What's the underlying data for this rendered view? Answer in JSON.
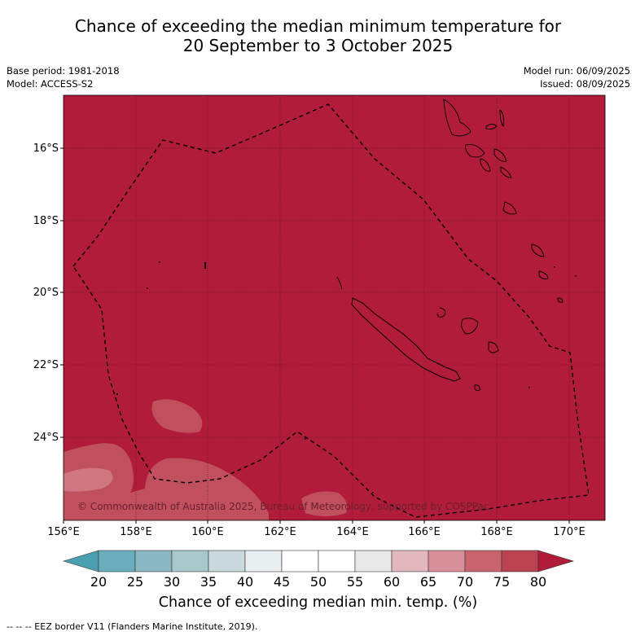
{
  "title_line1": "Chance of exceeding the median minimum temperature for",
  "title_line2": "20 September to 3 October 2025",
  "base_period": "Base period: 1981-2018",
  "model": "Model: ACCESS-S2",
  "model_run": "Model run: 06/09/2025",
  "issued": "Issued: 08/09/2025",
  "copyright": "© Commonwealth of Australia 2025, Bureau of Meteorology, supported by COSPPac",
  "lat_ticks": [
    "16°S",
    "18°S",
    "20°S",
    "22°S",
    "24°S"
  ],
  "lon_ticks": [
    "156°E",
    "158°E",
    "160°E",
    "162°E",
    "164°E",
    "166°E",
    "168°E",
    "170°E"
  ],
  "colorbar": {
    "ticks": [
      "20",
      "25",
      "30",
      "35",
      "40",
      "45",
      "50",
      "55",
      "60",
      "65",
      "70",
      "75",
      "80"
    ],
    "colors": [
      "#4a9fb0",
      "#6aaebd",
      "#8ab8c2",
      "#a9c8cc",
      "#c9d9dc",
      "#e9eff1",
      "#ffffff",
      "#ffffff",
      "#e8e8e8",
      "#e2b8be",
      "#d88e98",
      "#c9646f",
      "#bb4250",
      "#b01c3a"
    ],
    "label": "Chance of exceeding median min. temp. (%)"
  },
  "footnote": "--  --  -- EEZ border V11 (Flanders Marine Institute, 2019).",
  "map_colors": {
    "background": "#b01c3a",
    "lighter": "#c0505d",
    "lightest": "#cf7780"
  }
}
